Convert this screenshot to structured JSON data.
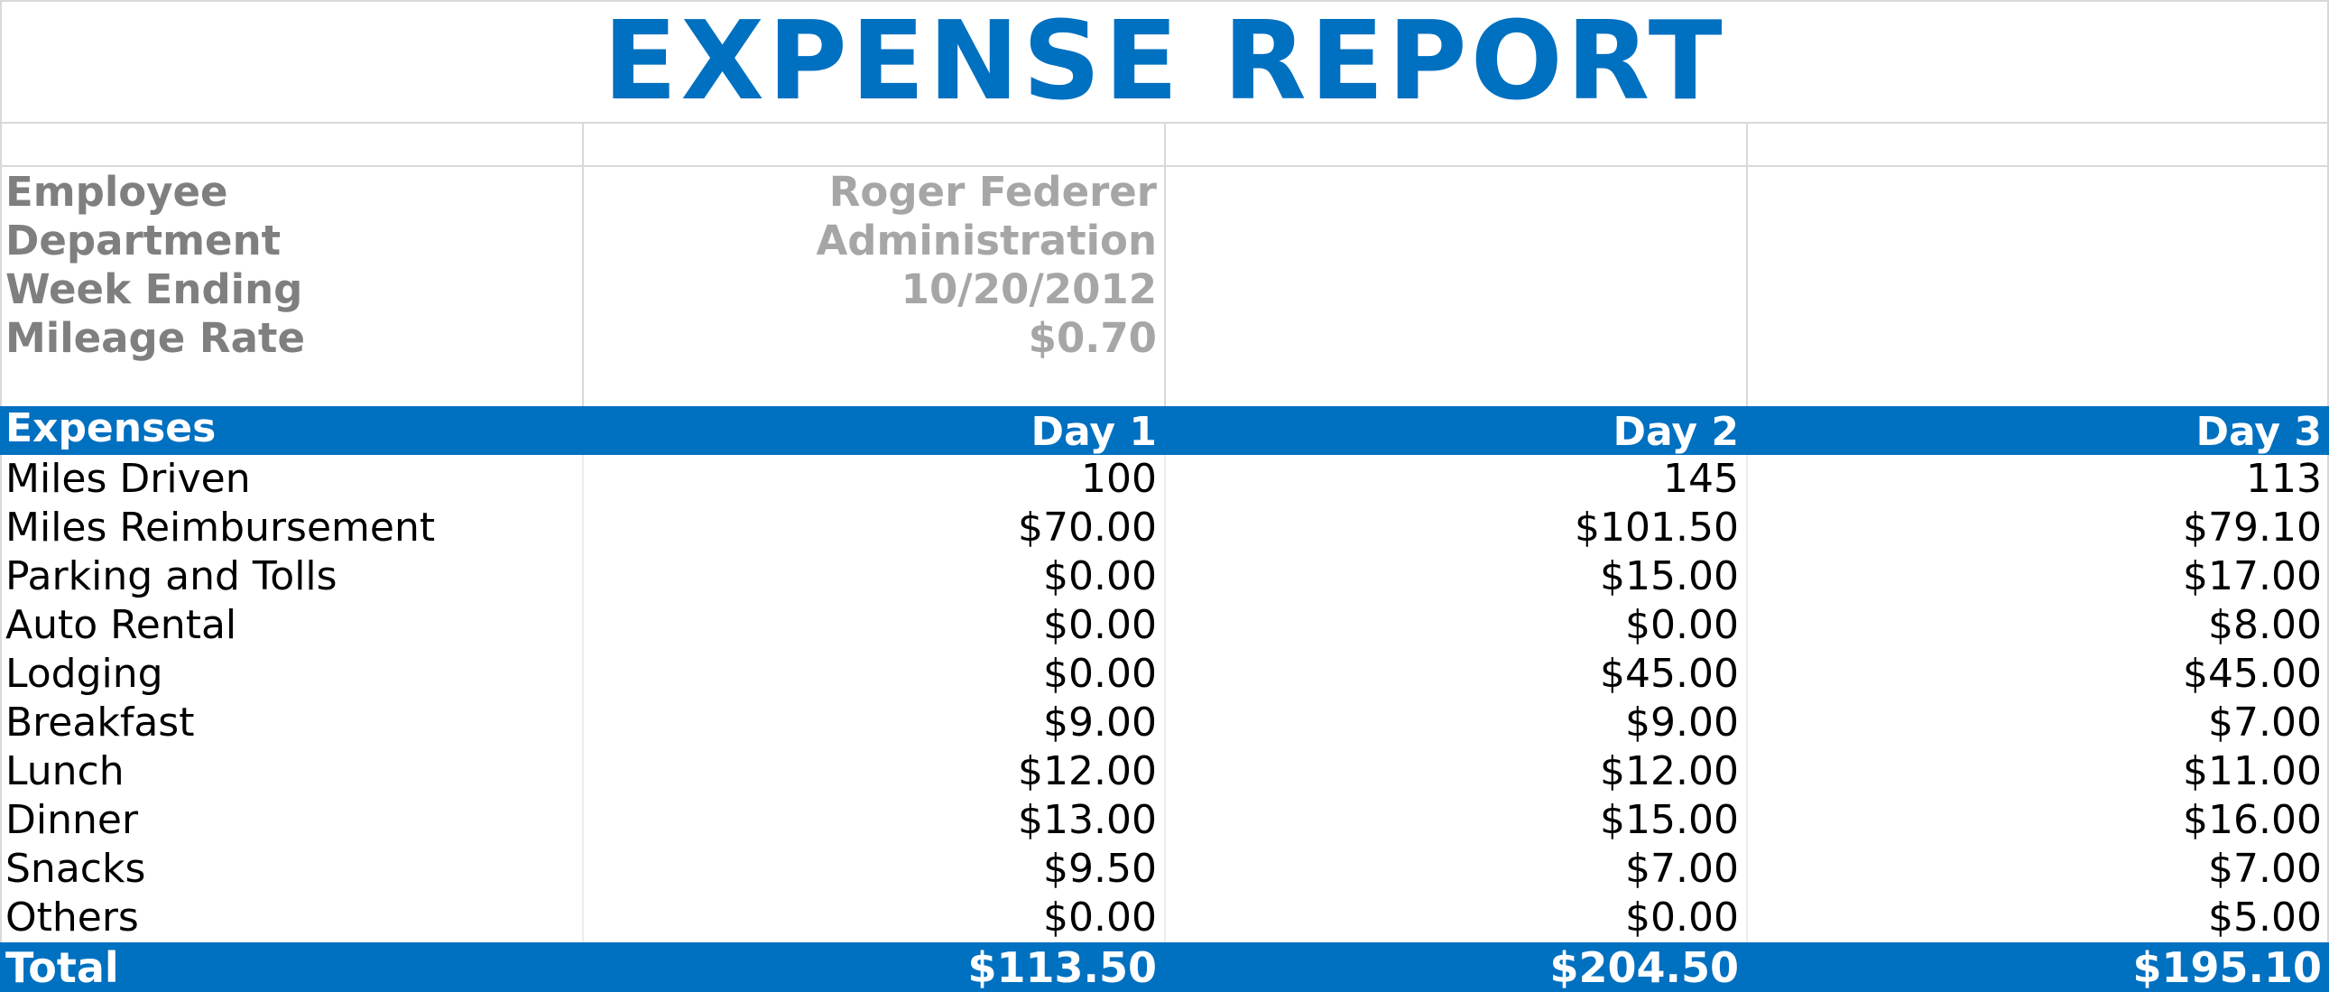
{
  "title": "EXPENSE REPORT",
  "info": [
    {
      "label": "Employee",
      "value": "Roger Federer"
    },
    {
      "label": "Department",
      "value": "Administration"
    },
    {
      "label": "Week Ending",
      "value": "10/20/2012"
    },
    {
      "label": "Mileage Rate",
      "value": "$0.70"
    }
  ],
  "table": {
    "headers": [
      "Expenses",
      "Day 1",
      "Day 2",
      "Day 3"
    ],
    "rows": [
      {
        "label": "Miles Driven",
        "values": [
          "100",
          "145",
          "113"
        ]
      },
      {
        "label": "Miles Reimbursement",
        "values": [
          "$70.00",
          "$101.50",
          "$79.10"
        ]
      },
      {
        "label": "Parking and Tolls",
        "values": [
          "$0.00",
          "$15.00",
          "$17.00"
        ]
      },
      {
        "label": "Auto Rental",
        "values": [
          "$0.00",
          "$0.00",
          "$8.00"
        ]
      },
      {
        "label": "Lodging",
        "values": [
          "$0.00",
          "$45.00",
          "$45.00"
        ]
      },
      {
        "label": "Breakfast",
        "values": [
          "$9.00",
          "$9.00",
          "$7.00"
        ]
      },
      {
        "label": "Lunch",
        "values": [
          "$12.00",
          "$12.00",
          "$11.00"
        ]
      },
      {
        "label": "Dinner",
        "values": [
          "$13.00",
          "$15.00",
          "$16.00"
        ]
      },
      {
        "label": "Snacks",
        "values": [
          "$9.50",
          "$7.00",
          "$7.00"
        ]
      },
      {
        "label": "Others",
        "values": [
          "$0.00",
          "$0.00",
          "$5.00"
        ]
      }
    ],
    "total": {
      "label": "Total",
      "values": [
        "$113.50",
        "$204.50",
        "$195.10"
      ]
    }
  },
  "colors": {
    "accent": "#0070c0",
    "info_label": "#7f7f7f",
    "info_value": "#a6a6a6",
    "grid": "#d9d9d9"
  }
}
